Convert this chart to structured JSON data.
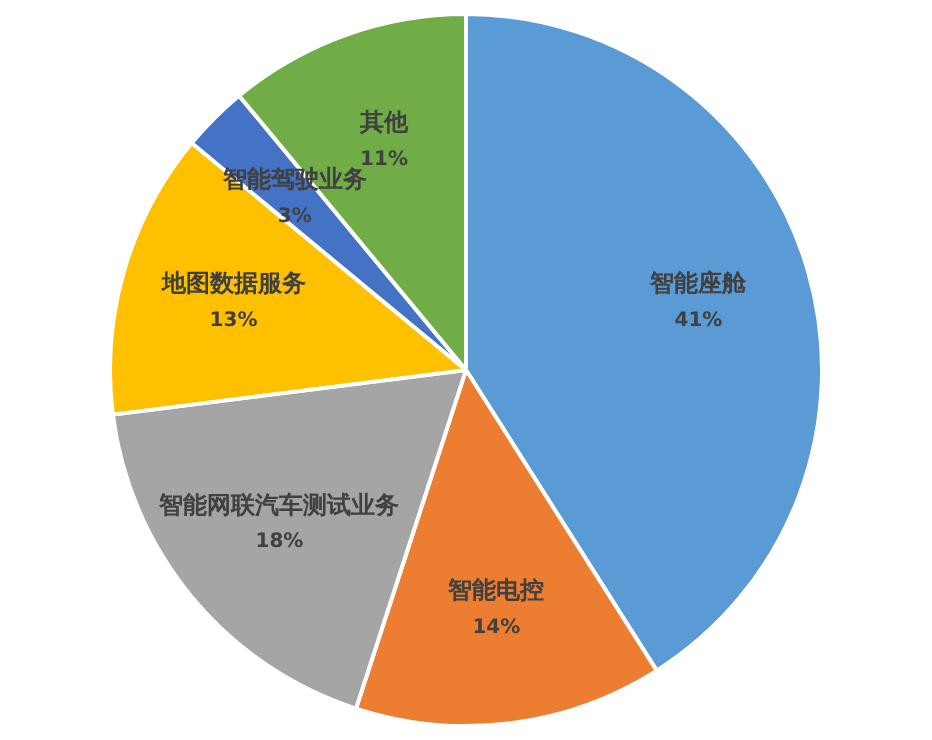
{
  "chart_data": {
    "type": "pie",
    "categories": [
      "智能座舱",
      "智能电控",
      "智能网联汽车测试业务",
      "地图数据服务",
      "智能驾驶业务",
      "其他"
    ],
    "values": [
      41,
      14,
      18,
      13,
      3,
      11
    ],
    "value_labels": [
      "41%",
      "14%",
      "18%",
      "13%",
      "3%",
      "11%"
    ],
    "colors": [
      "#5b9bd5",
      "#ed7d31",
      "#a5a5a5",
      "#ffc000",
      "#4472c4",
      "#70ad47"
    ],
    "legend": false
  }
}
